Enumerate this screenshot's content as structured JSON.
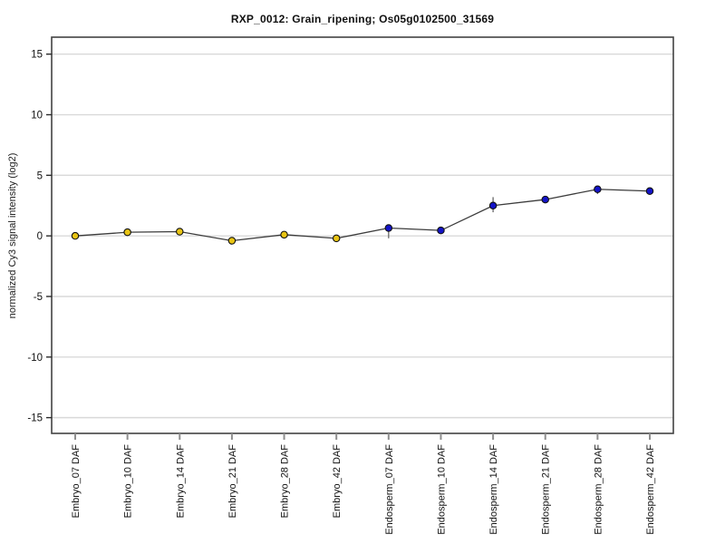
{
  "page": {
    "background": "#ffffff"
  },
  "chart_data": {
    "type": "line",
    "title": "RXP_0012: Grain_ripening; Os05g0102500_31569",
    "ylabel": "normalized Cy3 signal intensity (log2)",
    "xlabel": "",
    "ylim": [
      -16.3,
      16.4
    ],
    "yticks": [
      15,
      10,
      5,
      0,
      -5,
      -10,
      -15
    ],
    "grid": true,
    "legend": "none",
    "categories": [
      "Embryo_07 DAF",
      "Embryo_10 DAF",
      "Embryo_14 DAF",
      "Embryo_21 DAF",
      "Embryo_28 DAF",
      "Embryo_42 DAF",
      "Endosperm_07 DAF",
      "Endosperm_10 DAF",
      "Endosperm_14 DAF",
      "Endosperm_21 DAF",
      "Endosperm_28 DAF",
      "Endosperm_42 DAF"
    ],
    "series": [
      {
        "name": "normalized Cy3 signal intensity",
        "values": [
          0.0,
          0.3,
          0.35,
          -0.4,
          0.1,
          -0.2,
          0.65,
          0.45,
          2.5,
          3.0,
          3.85,
          3.7
        ],
        "err_up": [
          0.05,
          0.05,
          0.05,
          0.05,
          0.05,
          0.05,
          0.1,
          0.15,
          0.7,
          0.1,
          0.1,
          0.05
        ],
        "err_down": [
          0.05,
          0.05,
          0.05,
          0.05,
          0.05,
          0.05,
          0.85,
          0.25,
          0.55,
          0.1,
          0.4,
          0.05
        ],
        "marker_groups": [
          {
            "name": "Embryo",
            "color": "#E8C414",
            "count": 6
          },
          {
            "name": "Endosperm",
            "color": "#1414C8",
            "count": 6
          }
        ]
      }
    ],
    "colors": {
      "line": "#3c3c3c",
      "grid": "#d9d9d9",
      "frame": "#434343",
      "y_tick": "#2b2b2b",
      "x_tick": "#8f8f8f",
      "error_bar": "#666666",
      "marker_stroke": "#111111",
      "text": "#111111"
    }
  }
}
